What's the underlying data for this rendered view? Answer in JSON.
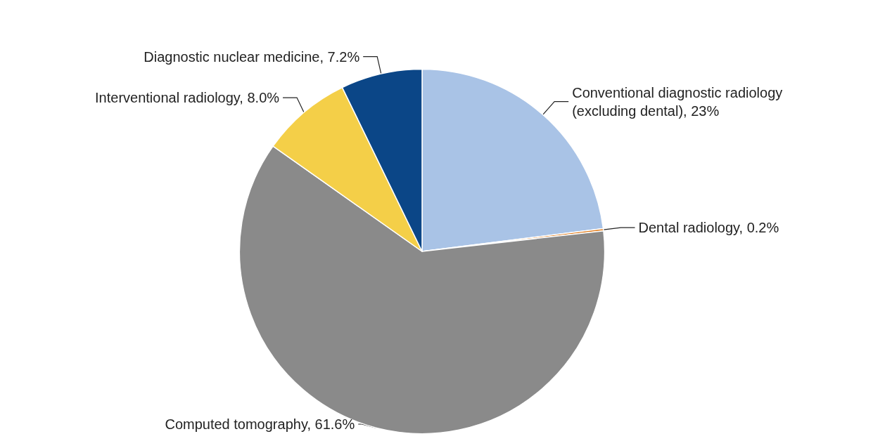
{
  "chart_data": {
    "type": "pie",
    "categories": [
      "Conventional diagnostic radiology (excluding dental)",
      "Dental radiology",
      "Computed tomography",
      "Interventional radiology",
      "Diagnostic nuclear medicine"
    ],
    "values": [
      23,
      0.2,
      61.6,
      8.0,
      7.2
    ],
    "value_labels": [
      "23%",
      "0.2%",
      "61.6%",
      "8.0%",
      "7.2%"
    ],
    "colors": [
      "#a9c3e6",
      "#e07b1a",
      "#8a8a8a",
      "#f4cf48",
      "#0b4687"
    ],
    "legend": false
  }
}
